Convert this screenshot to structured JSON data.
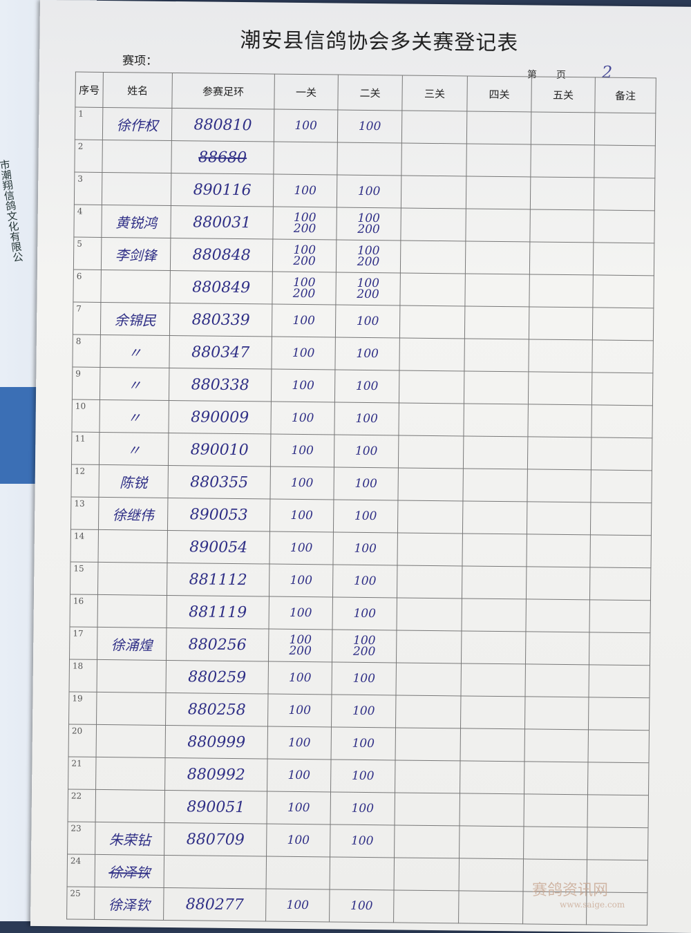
{
  "background_text": "市潮翔信鸽文化有限公",
  "title": "潮安县信鸽协会多关赛登记表",
  "event_label": "赛项：",
  "page_label": "第　　页",
  "page_number": "2",
  "headers": [
    "序号",
    "姓名",
    "参赛足环",
    "一关",
    "二关",
    "三关",
    "四关",
    "五关",
    "备注"
  ],
  "rows": [
    {
      "no": "1",
      "name": "徐作权",
      "ring": "880810",
      "g1": "100",
      "g2": "100"
    },
    {
      "no": "2",
      "name": "",
      "ring": "88680",
      "g1": "",
      "g2": "",
      "struck": true
    },
    {
      "no": "3",
      "name": "",
      "ring": "890116",
      "g1": "100",
      "g2": "100"
    },
    {
      "no": "4",
      "name": "黄锐鸿",
      "ring": "880031",
      "g1": "100 200",
      "g2": "100 200"
    },
    {
      "no": "5",
      "name": "李剑锋",
      "ring": "880848",
      "g1": "100 200",
      "g2": "100 200"
    },
    {
      "no": "6",
      "name": "",
      "ring": "880849",
      "g1": "100 200",
      "g2": "100 200"
    },
    {
      "no": "7",
      "name": "余锦民",
      "ring": "880339",
      "g1": "100",
      "g2": "100"
    },
    {
      "no": "8",
      "name": "〃",
      "ring": "880347",
      "g1": "100",
      "g2": "100"
    },
    {
      "no": "9",
      "name": "〃",
      "ring": "880338",
      "g1": "100",
      "g2": "100"
    },
    {
      "no": "10",
      "name": "〃",
      "ring": "890009",
      "g1": "100",
      "g2": "100"
    },
    {
      "no": "11",
      "name": "〃",
      "ring": "890010",
      "g1": "100",
      "g2": "100"
    },
    {
      "no": "12",
      "name": "陈锐",
      "ring": "880355",
      "g1": "100",
      "g2": "100"
    },
    {
      "no": "13",
      "name": "徐继伟",
      "ring": "890053",
      "g1": "100",
      "g2": "100"
    },
    {
      "no": "14",
      "name": "",
      "ring": "890054",
      "g1": "100",
      "g2": "100"
    },
    {
      "no": "15",
      "name": "",
      "ring": "881112",
      "g1": "100",
      "g2": "100"
    },
    {
      "no": "16",
      "name": "",
      "ring": "881119",
      "g1": "100",
      "g2": "100"
    },
    {
      "no": "17",
      "name": "徐涌煌",
      "ring": "880256",
      "g1": "100 200",
      "g2": "100 200"
    },
    {
      "no": "18",
      "name": "",
      "ring": "880259",
      "g1": "100",
      "g2": "100"
    },
    {
      "no": "19",
      "name": "",
      "ring": "880258",
      "g1": "100",
      "g2": "100"
    },
    {
      "no": "20",
      "name": "",
      "ring": "880999",
      "g1": "100",
      "g2": "100"
    },
    {
      "no": "21",
      "name": "",
      "ring": "880992",
      "g1": "100",
      "g2": "100"
    },
    {
      "no": "22",
      "name": "",
      "ring": "890051",
      "g1": "100",
      "g2": "100"
    },
    {
      "no": "23",
      "name": "朱荣钻",
      "ring": "880709",
      "g1": "100",
      "g2": "100"
    },
    {
      "no": "24",
      "name": "徐泽钦",
      "ring": "",
      "g1": "",
      "g2": "",
      "struck": true
    },
    {
      "no": "25",
      "name": "徐泽钦",
      "ring": "880277",
      "g1": "100",
      "g2": "100"
    }
  ],
  "watermark": {
    "name": "赛鸽资讯网",
    "url": "www.saige.com"
  },
  "colors": {
    "ink": "#2f2f86",
    "paper": "#f2f2f0"
  }
}
